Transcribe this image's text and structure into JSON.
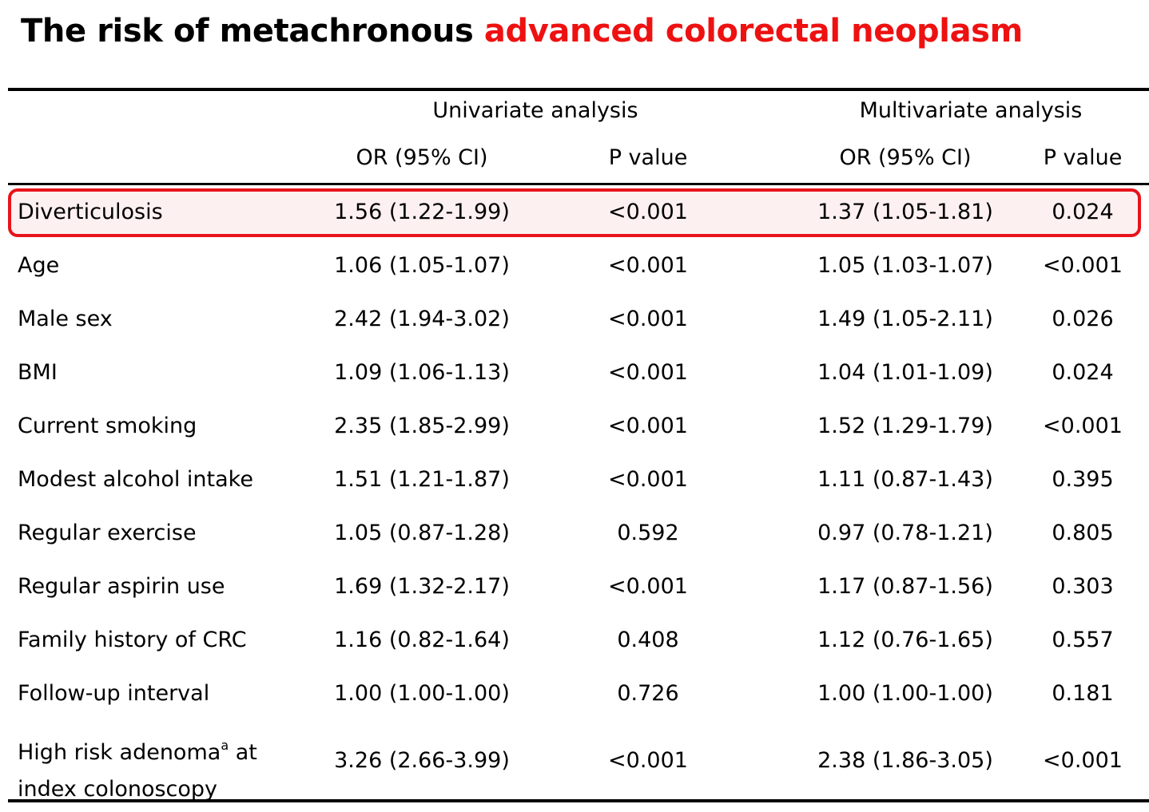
{
  "title": {
    "black_part": "The risk of metachronous",
    "red_part": "advanced colorectal neoplasm",
    "red_color": "#ee1111"
  },
  "table": {
    "group_headers": {
      "univariate": "Univariate analysis",
      "multivariate": "Multivariate analysis"
    },
    "sub_headers": {
      "uni_or": "OR (95% CI)",
      "uni_p": "P value",
      "mul_or": "OR (95% CI)",
      "mul_p": "P value"
    },
    "highlight_color": "#e8141b",
    "rows": [
      {
        "label": "Diverticulosis",
        "uni_or": "1.56 (1.22-1.99)",
        "uni_p": "<0.001",
        "mul_or": "1.37 (1.05-1.81)",
        "mul_p": "0.024",
        "highlighted": true
      },
      {
        "label": "Age",
        "uni_or": "1.06 (1.05-1.07)",
        "uni_p": "<0.001",
        "mul_or": "1.05 (1.03-1.07)",
        "mul_p": "<0.001"
      },
      {
        "label": "Male sex",
        "uni_or": "2.42 (1.94-3.02)",
        "uni_p": "<0.001",
        "mul_or": "1.49 (1.05-2.11)",
        "mul_p": "0.026"
      },
      {
        "label": "BMI",
        "uni_or": "1.09 (1.06-1.13)",
        "uni_p": "<0.001",
        "mul_or": "1.04 (1.01-1.09)",
        "mul_p": "0.024"
      },
      {
        "label": "Current smoking",
        "uni_or": "2.35 (1.85-2.99)",
        "uni_p": "<0.001",
        "mul_or": "1.52 (1.29-1.79)",
        "mul_p": "<0.001"
      },
      {
        "label": "Modest alcohol intake",
        "uni_or": "1.51 (1.21-1.87)",
        "uni_p": "<0.001",
        "mul_or": "1.11 (0.87-1.43)",
        "mul_p": "0.395"
      },
      {
        "label": "Regular exercise",
        "uni_or": "1.05 (0.87-1.28)",
        "uni_p": "0.592",
        "mul_or": "0.97 (0.78-1.21)",
        "mul_p": "0.805"
      },
      {
        "label": "Regular aspirin use",
        "uni_or": "1.69 (1.32-2.17)",
        "uni_p": "<0.001",
        "mul_or": "1.17 (0.87-1.56)",
        "mul_p": "0.303"
      },
      {
        "label": "Family history of CRC",
        "uni_or": "1.16 (0.82-1.64)",
        "uni_p": "0.408",
        "mul_or": "1.12 (0.76-1.65)",
        "mul_p": "0.557"
      },
      {
        "label": "Follow-up interval",
        "uni_or": "1.00 (1.00-1.00)",
        "uni_p": "0.726",
        "mul_or": "1.00 (1.00-1.00)",
        "mul_p": "0.181"
      },
      {
        "label_pre": "High risk adenoma",
        "label_sup": "a",
        "label_post": " at index colonoscopy",
        "uni_or": "3.26 (2.66-3.99)",
        "uni_p": "<0.001",
        "mul_or": "2.38 (1.86-3.05)",
        "mul_p": "<0.001"
      }
    ]
  }
}
